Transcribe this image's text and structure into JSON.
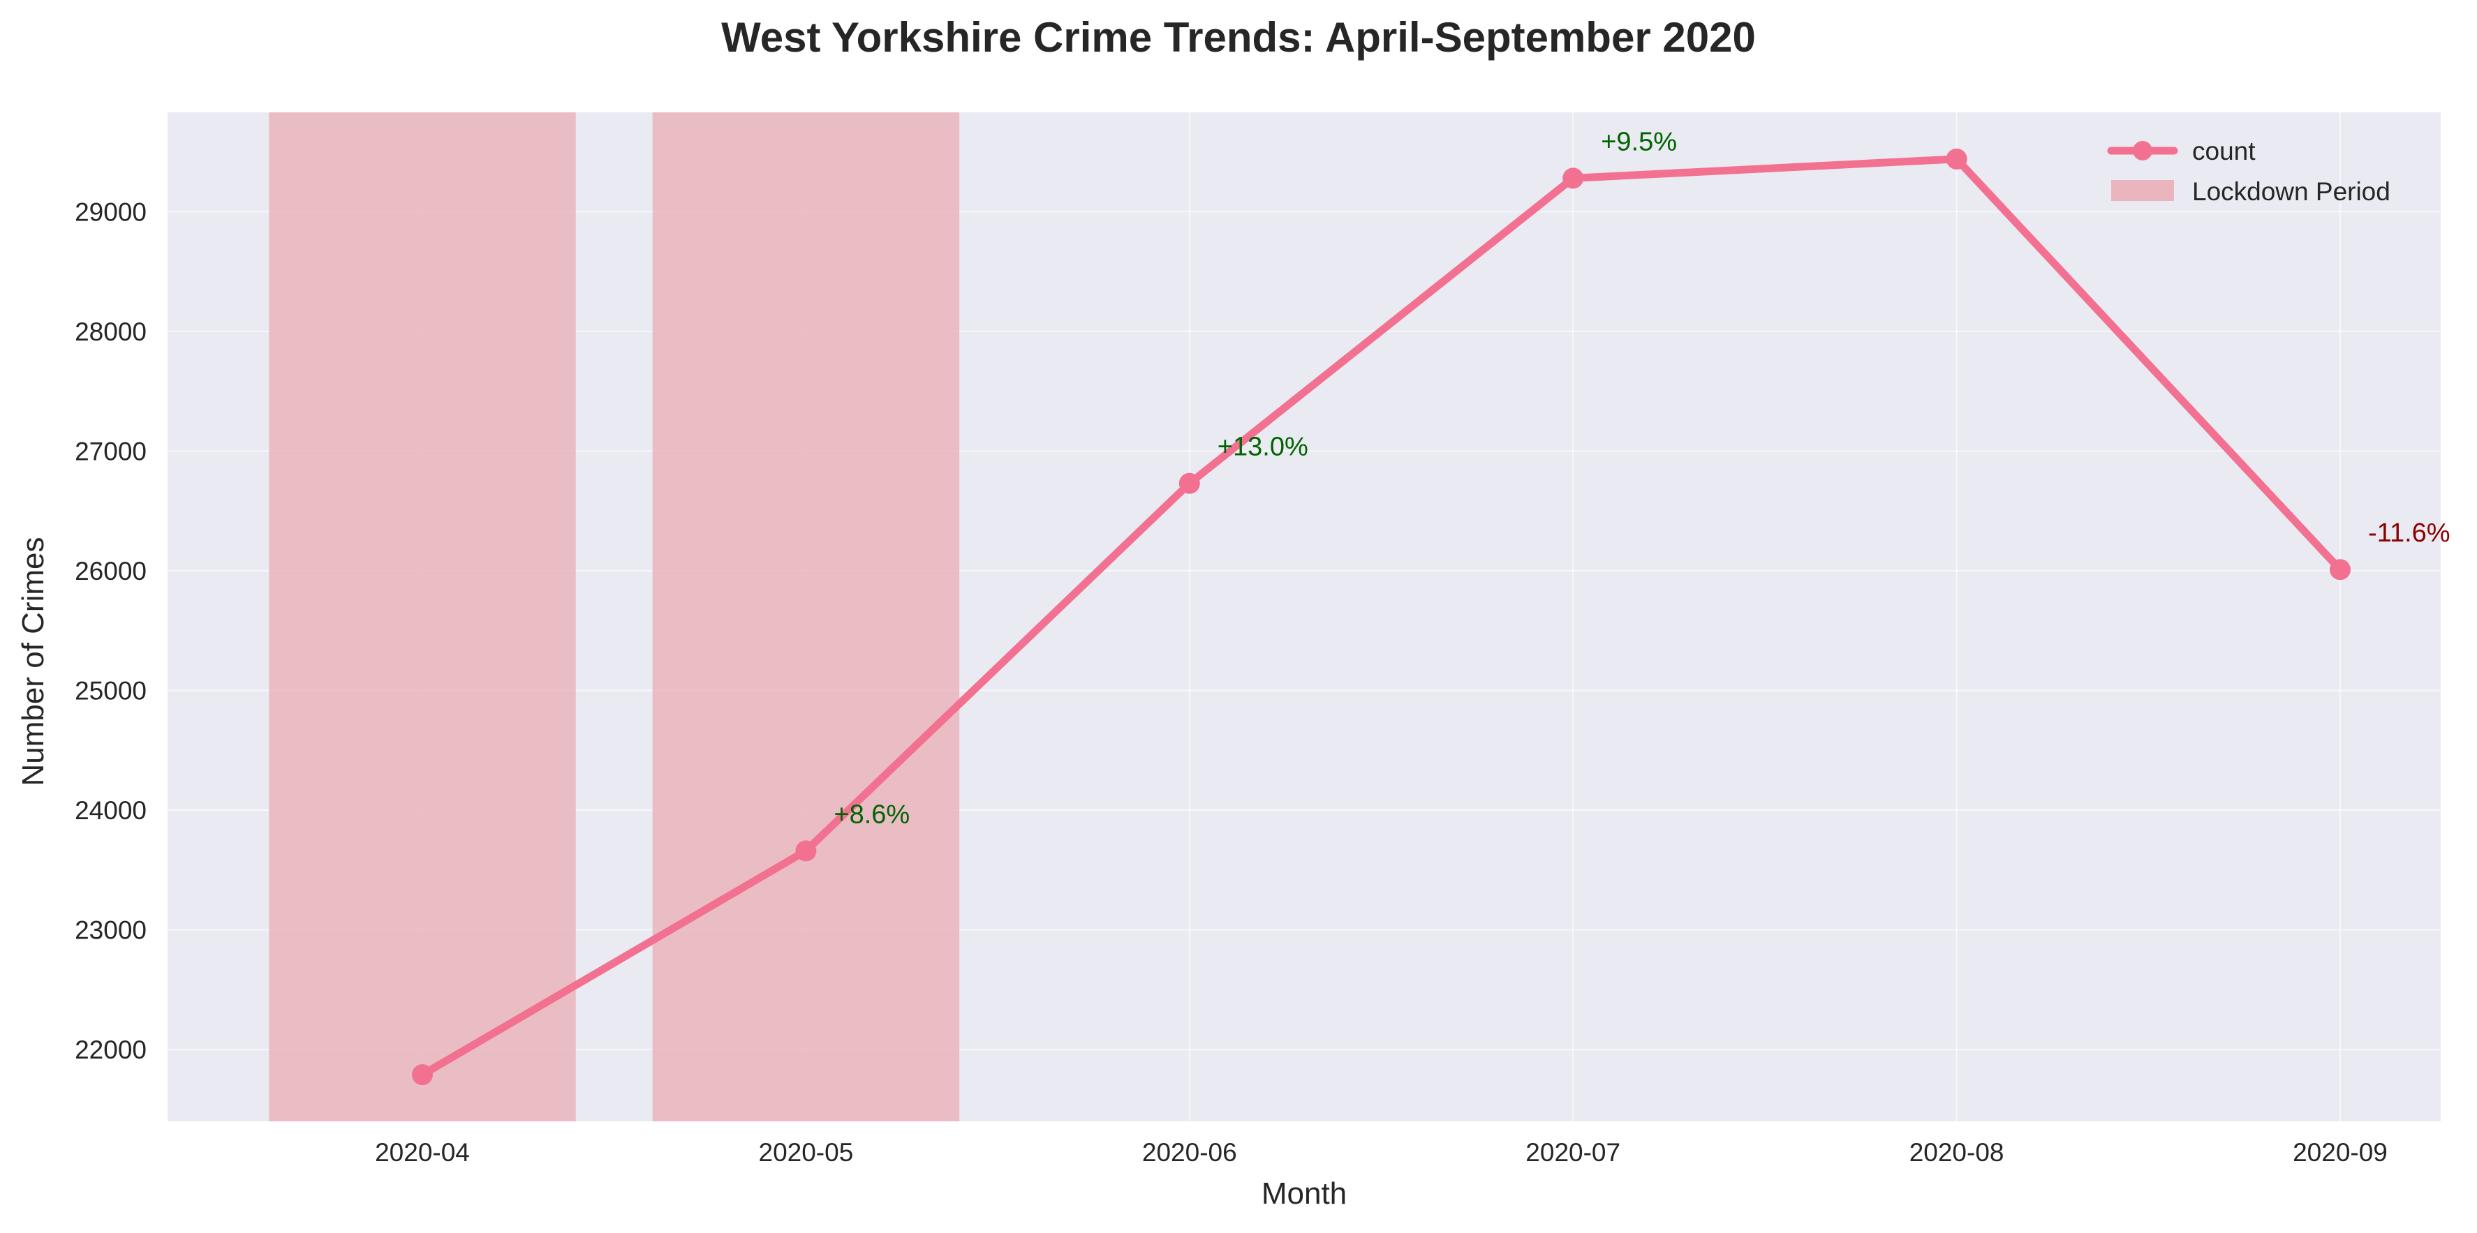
{
  "chart_data": {
    "type": "line",
    "title": "West Yorkshire Crime Trends: April-September 2020",
    "xlabel": "Month",
    "ylabel": "Number of Crimes",
    "categories": [
      "2020-04",
      "2020-05",
      "2020-06",
      "2020-07",
      "2020-08",
      "2020-09"
    ],
    "series": [
      {
        "name": "count",
        "values": [
          21790,
          23660,
          26730,
          29280,
          29440,
          26010
        ],
        "color": "#f37190"
      }
    ],
    "ylim": [
      21400,
      29830
    ],
    "yticks": [
      "22000",
      "23000",
      "24000",
      "25000",
      "26000",
      "27000",
      "28000",
      "29000"
    ],
    "shaded_regions": {
      "name": "Lockdown Period",
      "color": "#eab5bd",
      "ranges": [
        [
          "2020-04",
          "2020-04"
        ],
        [
          "2020-05",
          "2020-05"
        ]
      ]
    },
    "annotations": [
      {
        "category": "2020-05",
        "text": "+8.6%",
        "color": "#006400"
      },
      {
        "category": "2020-06",
        "text": "+13.0%",
        "color": "#006400"
      },
      {
        "category": "2020-07",
        "text": "+9.5%",
        "color": "#006400"
      },
      {
        "category": "2020-09",
        "text": "-11.6%",
        "color": "#8b0000"
      }
    ],
    "grid": true,
    "legend": {
      "position": "top-right",
      "entries": [
        "count",
        "Lockdown Period"
      ]
    },
    "plot_background": "#eaeaf2"
  }
}
